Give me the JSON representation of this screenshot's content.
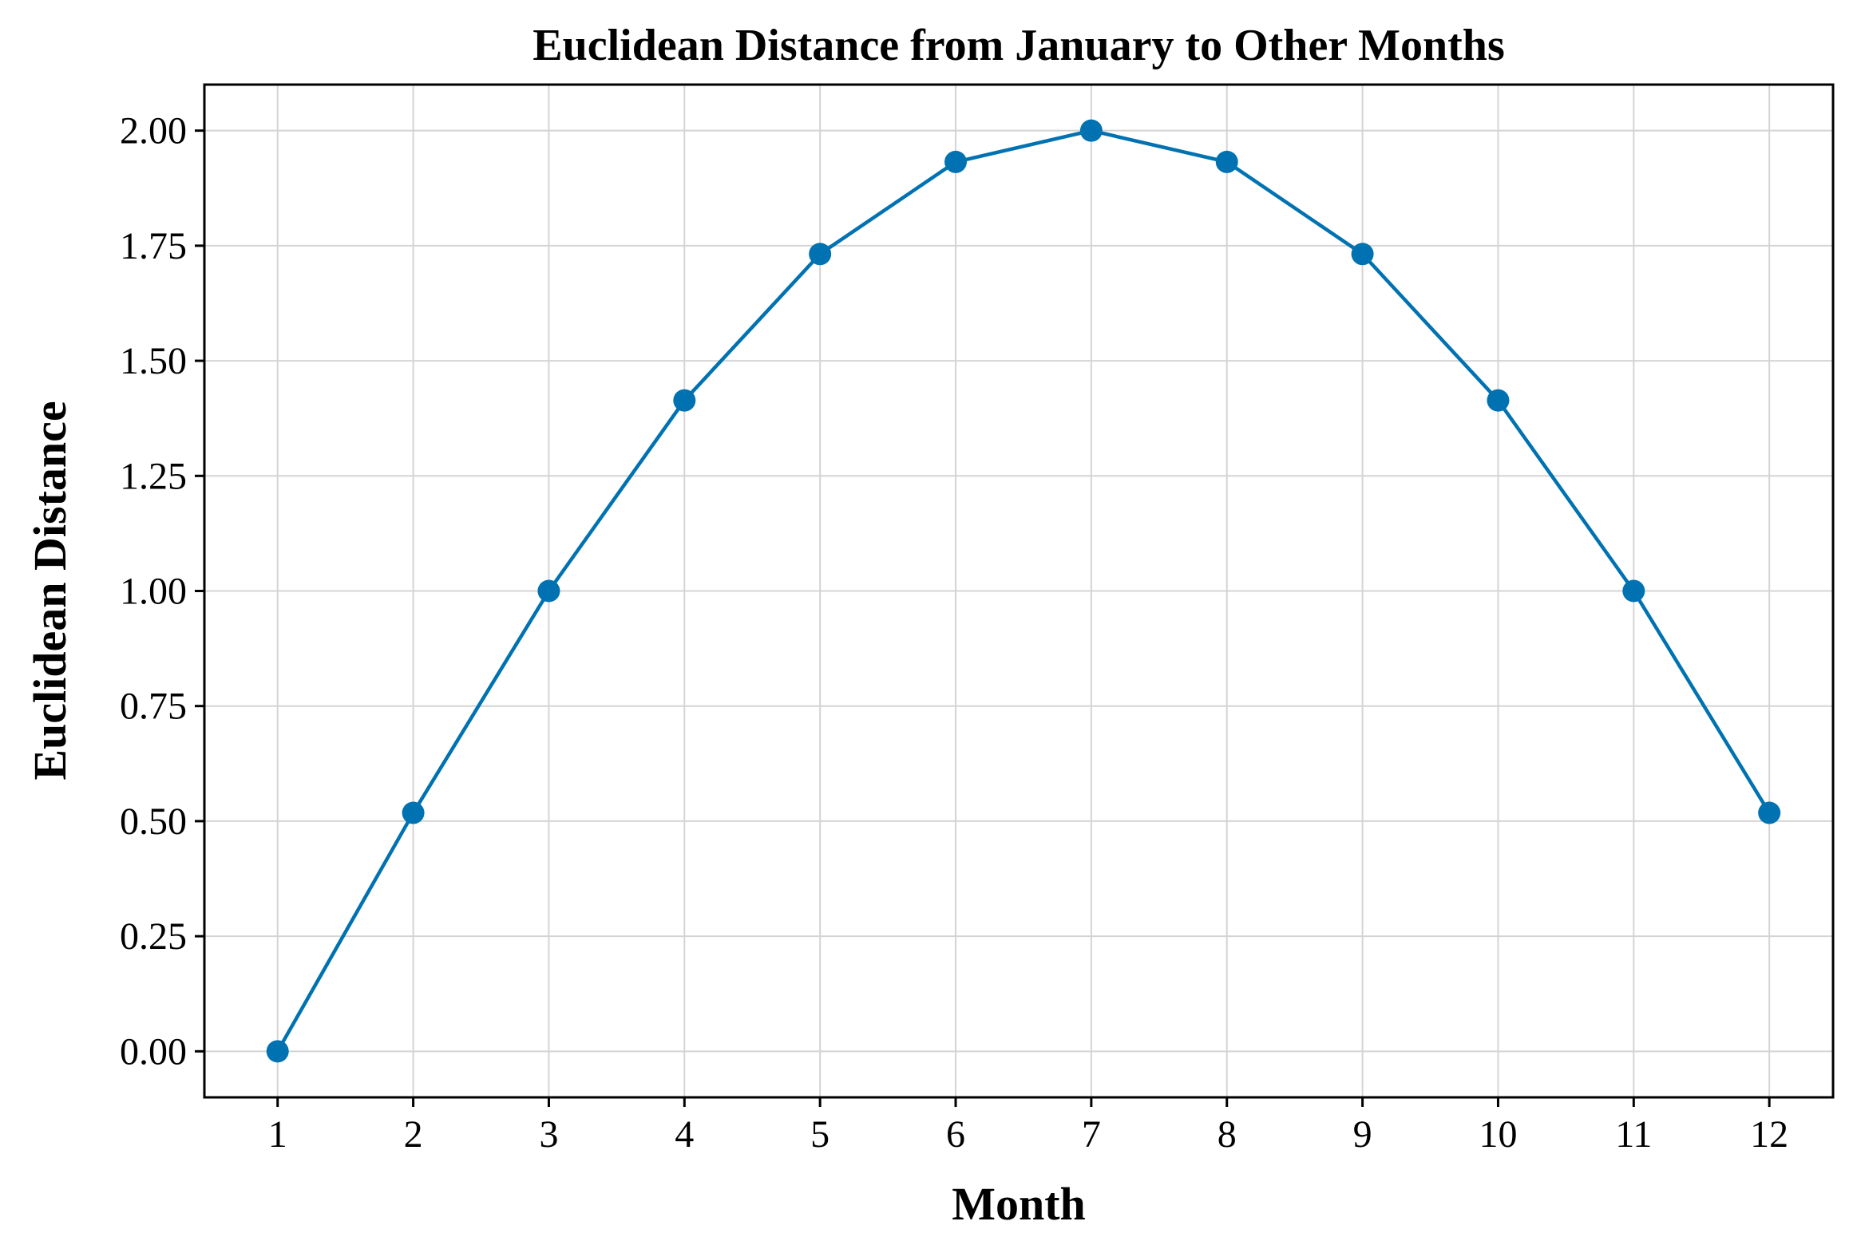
{
  "chart_data": {
    "type": "line",
    "title": "Euclidean Distance from January to Other Months",
    "xlabel": "Month",
    "ylabel": "Euclidean Distance",
    "x": [
      1,
      2,
      3,
      4,
      5,
      6,
      7,
      8,
      9,
      10,
      11,
      12
    ],
    "xticks": [
      "1",
      "2",
      "3",
      "4",
      "5",
      "6",
      "7",
      "8",
      "9",
      "10",
      "11",
      "12"
    ],
    "yticks": [
      "0.00",
      "0.25",
      "0.50",
      "0.75",
      "1.00",
      "1.25",
      "1.50",
      "1.75",
      "2.00"
    ],
    "ytick_values": [
      0,
      0.25,
      0.5,
      0.75,
      1.0,
      1.25,
      1.5,
      1.75,
      2.0
    ],
    "series": [
      {
        "values": [
          0.0,
          0.518,
          1.0,
          1.414,
          1.732,
          1.932,
          2.0,
          1.932,
          1.732,
          1.414,
          1.0,
          0.518
        ],
        "color": "#0072b2",
        "marker": "circle"
      }
    ],
    "xlim": [
      0.46,
      12.47
    ],
    "ylim": [
      -0.1,
      2.1
    ],
    "grid": true,
    "legend": "none"
  }
}
